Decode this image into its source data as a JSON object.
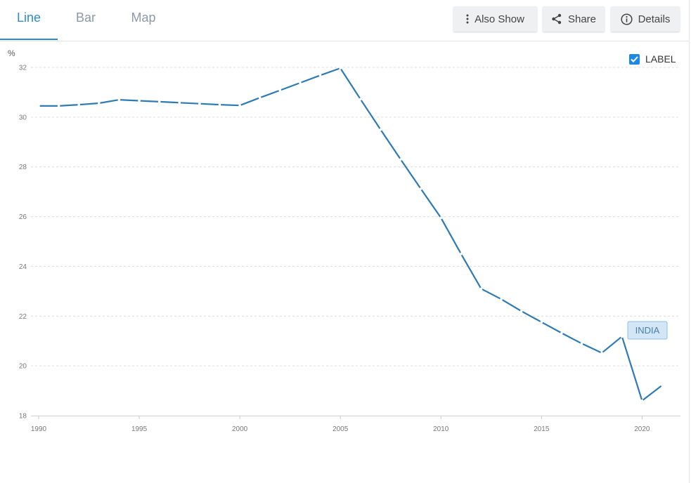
{
  "tabs": [
    {
      "label": "Line",
      "active": true
    },
    {
      "label": "Bar",
      "active": false
    },
    {
      "label": "Map",
      "active": false
    }
  ],
  "toolbar": {
    "also_show_label": "Also Show",
    "share_label": "Share",
    "details_label": "Details",
    "icons": [
      "more-vert-icon",
      "share-icon",
      "info-icon"
    ]
  },
  "legend_toggle": {
    "label": "LABEL",
    "checked": true
  },
  "colors": {
    "accent": "#2b8ad6",
    "series": "#2e7bb4",
    "checkbox": "#1e88e5"
  },
  "chart_data": {
    "type": "line",
    "ylabel": "%",
    "ylim": [
      18,
      32
    ],
    "yticks": [
      18,
      20,
      22,
      24,
      26,
      28,
      30,
      32
    ],
    "xlim": [
      1990,
      2021
    ],
    "xticks": [
      1990,
      1995,
      2000,
      2005,
      2010,
      2015,
      2020
    ],
    "grid": true,
    "x": [
      1990,
      1991,
      1992,
      1993,
      1994,
      1995,
      1996,
      1997,
      1998,
      1999,
      2000,
      2001,
      2002,
      2003,
      2004,
      2005,
      2006,
      2007,
      2008,
      2009,
      2010,
      2011,
      2012,
      2013,
      2014,
      2015,
      2016,
      2017,
      2018,
      2019,
      2020,
      2021
    ],
    "series": [
      {
        "name": "INDIA",
        "values": [
          30.45,
          30.45,
          30.5,
          30.56,
          30.7,
          30.66,
          30.62,
          30.58,
          30.54,
          30.5,
          30.47,
          30.78,
          31.08,
          31.38,
          31.68,
          31.97,
          30.72,
          29.5,
          28.3,
          27.12,
          25.95,
          24.5,
          23.1,
          22.68,
          22.2,
          21.76,
          21.32,
          20.9,
          20.52,
          21.18,
          18.6,
          19.22
        ]
      }
    ]
  }
}
